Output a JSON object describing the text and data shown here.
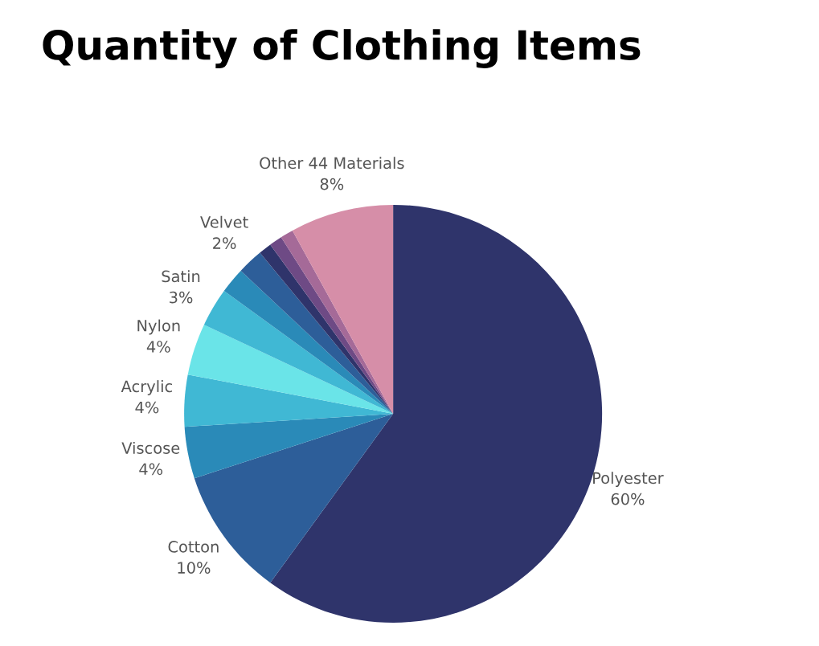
{
  "chart_data": {
    "type": "pie",
    "title": "Quantity of Clothing Items",
    "categories": [
      "Polyester",
      "Cotton",
      "Viscose",
      "Acrylic",
      "Nylon",
      "Satin",
      null,
      "Velvet",
      null,
      null,
      null,
      "Other 44 Materials"
    ],
    "values": [
      60,
      10,
      4,
      4,
      4,
      3,
      2,
      2,
      1,
      1,
      1,
      8
    ],
    "value_labels": [
      "60%",
      "10%",
      "4%",
      "4%",
      "4%",
      "3%",
      null,
      "2%",
      null,
      null,
      null,
      "8%"
    ],
    "colors": [
      "#2f346b",
      "#2d5e99",
      "#2a8ab8",
      "#40b8d4",
      "#6ae4e8",
      "#40b8d4",
      "#2a8ab8",
      "#2d5e99",
      "#2f346b",
      "#6e4a85",
      "#a56a98",
      "#d68ea8"
    ]
  }
}
